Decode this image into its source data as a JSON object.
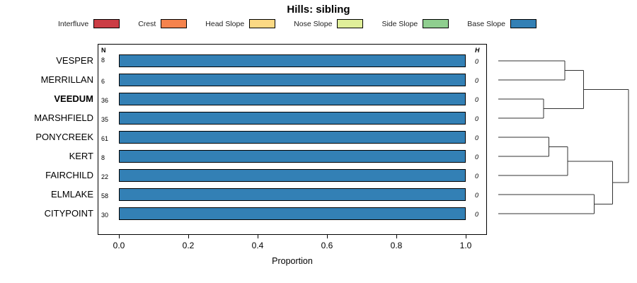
{
  "title": "Hills: sibling",
  "xlabel": "Proportion",
  "columns": {
    "n_header": "N",
    "h_header": "H"
  },
  "legend": [
    {
      "label": "Interfluve",
      "color": "#cb3d45"
    },
    {
      "label": "Crest",
      "color": "#f5834d"
    },
    {
      "label": "Head Slope",
      "color": "#fbd984"
    },
    {
      "label": "Nose Slope",
      "color": "#e0ef9a"
    },
    {
      "label": "Side Slope",
      "color": "#8fce8f"
    },
    {
      "label": "Base Slope",
      "color": "#3380b5"
    }
  ],
  "chart_data": {
    "type": "bar",
    "orientation": "horizontal",
    "stacked": true,
    "title": "Hills: sibling",
    "xlabel": "Proportion",
    "xlim": [
      0,
      1
    ],
    "xticks": [
      0,
      0.2,
      0.4,
      0.6,
      0.8,
      1
    ],
    "xtick_labels": [
      "0.0",
      "0.2",
      "0.4",
      "0.6",
      "0.8",
      "1.0"
    ],
    "categories": [
      "VESPER",
      "MERRILLAN",
      "VEEDUM",
      "MARSHFIELD",
      "PONYCREEK",
      "KERT",
      "FAIRCHILD",
      "ELMLAKE",
      "CITYPOINT"
    ],
    "bold_category": "VEEDUM",
    "n_values": [
      8,
      6,
      36,
      35,
      61,
      8,
      22,
      58,
      30
    ],
    "h_values": [
      "0",
      "0",
      "0",
      "0",
      "0",
      "0",
      "0",
      "0",
      "0"
    ],
    "series": [
      {
        "name": "Base Slope",
        "color": "#3380b5",
        "values": [
          1,
          1,
          1,
          1,
          1,
          1,
          1,
          1,
          1
        ]
      }
    ],
    "legend_position": "top",
    "grid": false,
    "dendrogram": {
      "merges": [
        {
          "a": "L0",
          "b": "L1",
          "h": 0.5
        },
        {
          "a": "L2",
          "b": "L3",
          "h": 0.34
        },
        {
          "a": "M0",
          "b": "M1",
          "h": 0.64
        },
        {
          "a": "L4",
          "b": "L5",
          "h": 0.38
        },
        {
          "a": "M3",
          "b": "L6",
          "h": 0.52
        },
        {
          "a": "L7",
          "b": "L8",
          "h": 0.72
        },
        {
          "a": "M4",
          "b": "M5",
          "h": 0.86
        },
        {
          "a": "M2",
          "b": "M6",
          "h": 0.98
        }
      ]
    }
  }
}
